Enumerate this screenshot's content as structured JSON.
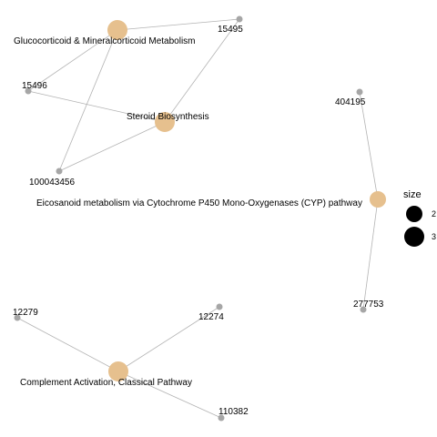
{
  "pathways": [
    {
      "id": "glucocorticoid",
      "label": "Glucocorticoid & Mineralcorticoid Metabolism",
      "size": 3
    },
    {
      "id": "steroid",
      "label": "Steroid Biosynthesis",
      "size": 3
    },
    {
      "id": "eicosanoid",
      "label": "Eicosanoid metabolism via Cytochrome P450 Mono-Oxygenases (CYP) pathway",
      "size": 2
    },
    {
      "id": "complement",
      "label": "Complement Activation, Classical Pathway",
      "size": 3
    }
  ],
  "genes": [
    {
      "id": "15495",
      "label": "15495"
    },
    {
      "id": "15496",
      "label": "15496"
    },
    {
      "id": "100043456",
      "label": "100043456"
    },
    {
      "id": "404195",
      "label": "404195"
    },
    {
      "id": "277753",
      "label": "277753"
    },
    {
      "id": "12279",
      "label": "12279"
    },
    {
      "id": "12274",
      "label": "12274"
    },
    {
      "id": "110382",
      "label": "110382"
    }
  ],
  "edges": [
    [
      "glucocorticoid",
      "15495"
    ],
    [
      "glucocorticoid",
      "15496"
    ],
    [
      "glucocorticoid",
      "100043456"
    ],
    [
      "steroid",
      "15495"
    ],
    [
      "steroid",
      "15496"
    ],
    [
      "steroid",
      "100043456"
    ],
    [
      "eicosanoid",
      "404195"
    ],
    [
      "eicosanoid",
      "277753"
    ],
    [
      "complement",
      "12279"
    ],
    [
      "complement",
      "12274"
    ],
    [
      "complement",
      "110382"
    ]
  ],
  "legend": {
    "title": "size",
    "items": [
      {
        "value": 2,
        "label": "2"
      },
      {
        "value": 3,
        "label": "3"
      }
    ]
  }
}
